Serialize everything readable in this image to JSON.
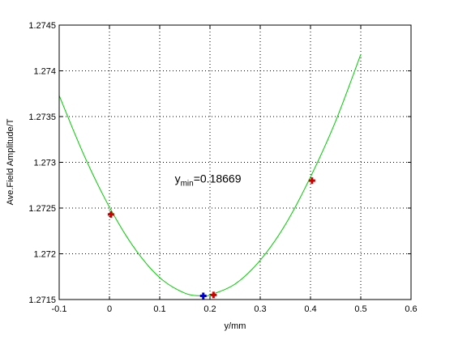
{
  "chart_data": {
    "type": "line",
    "title": "",
    "xlabel": "y/mm",
    "ylabel": "Ave.Field Amplitude/T",
    "xlim": [
      -0.1,
      0.6
    ],
    "ylim": [
      1.2715,
      1.2745
    ],
    "grid": true,
    "x_ticks": [
      -0.1,
      0,
      0.1,
      0.2,
      0.3,
      0.4,
      0.5,
      0.6
    ],
    "x_tick_labels": [
      "-0.1",
      "0",
      "0.1",
      "0.2",
      "0.3",
      "0.4",
      "0.5",
      "0.6"
    ],
    "y_ticks": [
      1.2715,
      1.272,
      1.2725,
      1.273,
      1.2735,
      1.274,
      1.2745
    ],
    "y_tick_labels": [
      "1.2715",
      "1.272",
      "1.2725",
      "1.273",
      "1.2735",
      "1.274",
      "1.2745"
    ],
    "series": [
      {
        "style": "line",
        "color": "#00cc00",
        "x": [
          -0.1,
          -0.05,
          0,
          0.05,
          0.1,
          0.15,
          0.18669,
          0.2,
          0.25,
          0.3,
          0.35,
          0.4,
          0.45,
          0.5
        ],
        "y": [
          1.27373,
          1.27307,
          1.27251,
          1.27206,
          1.27174,
          1.27157,
          1.27154,
          1.27155,
          1.27167,
          1.27193,
          1.27232,
          1.27284,
          1.27345,
          1.27418
        ]
      },
      {
        "style": "marker",
        "marker": "+",
        "color": "#cc0000",
        "x": [
          0.003,
          0.207,
          0.403
        ],
        "y": [
          1.27243,
          1.27155,
          1.2728
        ]
      },
      {
        "style": "marker",
        "marker": "+",
        "color": "#0000cc",
        "x": [
          0.18669
        ],
        "y": [
          1.27154
        ]
      }
    ],
    "annotation": {
      "main": "y",
      "sub": "min",
      "value": "=0.18669",
      "x": 0.13,
      "y": 1.27278
    }
  }
}
